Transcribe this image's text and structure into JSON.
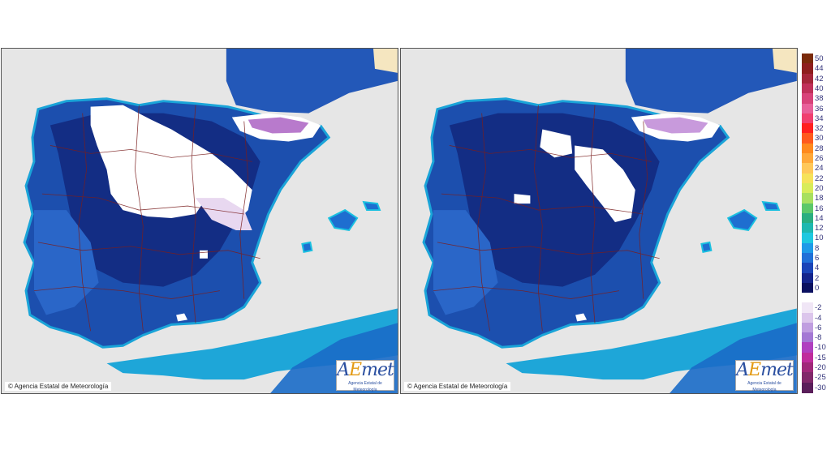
{
  "panels": [
    {
      "copyright": "© Agencia Estatal de Meteorología",
      "logo": {
        "text_a": "A",
        "text_e": "E",
        "text_met": "met",
        "subtitle": "Agencia Estatal de Meteorología"
      }
    },
    {
      "copyright": "© Agencia Estatal de Meteorología",
      "logo": {
        "text_a": "A",
        "text_e": "E",
        "text_met": "met",
        "subtitle": "Agencia Estatal de Meteorología"
      }
    }
  ],
  "legend": {
    "items": [
      {
        "label": "50",
        "color": "#7a2a0a"
      },
      {
        "label": "44",
        "color": "#8e1e1e"
      },
      {
        "label": "42",
        "color": "#a4263a"
      },
      {
        "label": "40",
        "color": "#c0305a"
      },
      {
        "label": "38",
        "color": "#d8437a"
      },
      {
        "label": "36",
        "color": "#e8609a"
      },
      {
        "label": "34",
        "color": "#f04070"
      },
      {
        "label": "32",
        "color": "#ff2020"
      },
      {
        "label": "30",
        "color": "#ff5a1e"
      },
      {
        "label": "28",
        "color": "#ff8a1e"
      },
      {
        "label": "26",
        "color": "#ffa83a"
      },
      {
        "label": "24",
        "color": "#ffc85a"
      },
      {
        "label": "22",
        "color": "#f6e25a"
      },
      {
        "label": "20",
        "color": "#d8ec5a"
      },
      {
        "label": "18",
        "color": "#a8e060"
      },
      {
        "label": "16",
        "color": "#5cc86a"
      },
      {
        "label": "14",
        "color": "#2aae80"
      },
      {
        "label": "12",
        "color": "#1eb8b0"
      },
      {
        "label": "10",
        "color": "#1ec8e0"
      },
      {
        "label": "8",
        "color": "#1e9ae8"
      },
      {
        "label": "6",
        "color": "#2070d8"
      },
      {
        "label": "4",
        "color": "#1a44b8"
      },
      {
        "label": "2",
        "color": "#14248c"
      },
      {
        "label": "0",
        "color": "#0a1060"
      },
      {
        "label": "-2",
        "color": "#f0e6f6"
      },
      {
        "label": "-4",
        "color": "#dcc6ec"
      },
      {
        "label": "-6",
        "color": "#c09ee0"
      },
      {
        "label": "-8",
        "color": "#a478d4"
      },
      {
        "label": "-10",
        "color": "#b040c0"
      },
      {
        "label": "-15",
        "color": "#c02c9c"
      },
      {
        "label": "-20",
        "color": "#a0287a"
      },
      {
        "label": "-25",
        "color": "#80286a"
      },
      {
        "label": "-30",
        "color": "#5a1e5a"
      }
    ]
  }
}
